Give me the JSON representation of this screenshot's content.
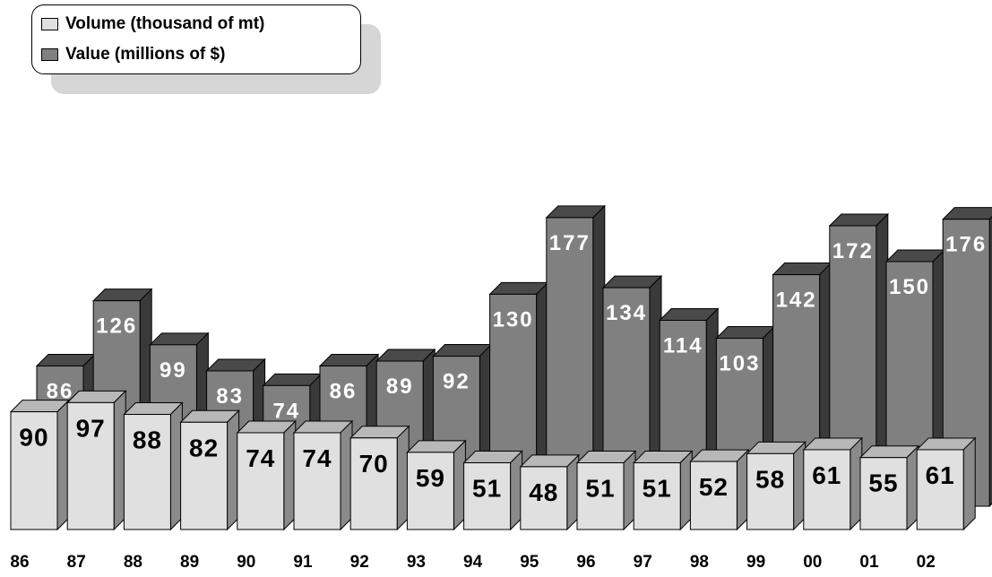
{
  "chart_data": {
    "type": "bar",
    "categories": [
      "86",
      "87",
      "88",
      "89",
      "90",
      "91",
      "92",
      "93",
      "94",
      "95",
      "96",
      "97",
      "98",
      "99",
      "00",
      "01",
      "02"
    ],
    "series": [
      {
        "name": "Volume (thousand of mt)",
        "values": [
          90,
          97,
          88,
          82,
          74,
          74,
          70,
          59,
          51,
          48,
          51,
          51,
          52,
          58,
          61,
          55,
          61
        ],
        "color": "#e0e0e0"
      },
      {
        "name": "Value (millions of $)",
        "values": [
          86,
          126,
          99,
          83,
          74,
          86,
          89,
          92,
          130,
          177,
          134,
          114,
          103,
          142,
          172,
          150,
          176
        ],
        "color": "#808080"
      }
    ],
    "legend": {
      "placement": "top-left"
    },
    "three_d": true,
    "grid": false
  }
}
